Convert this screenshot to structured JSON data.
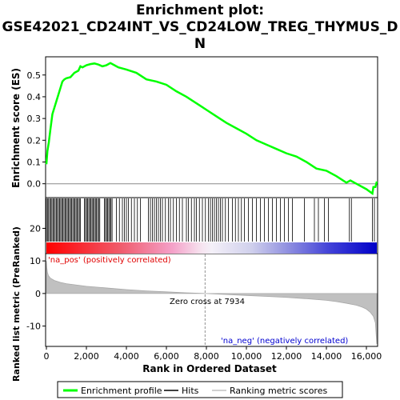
{
  "chart_data": {
    "type": "line",
    "title_line1": "Enrichment plot:",
    "title_line2": "GSE42021_CD24INT_VS_CD24LOW_TREG_THYMUS_D",
    "title_line3": "N",
    "es_panel": {
      "ylabel": "Enrichment score (ES)",
      "ylim": [
        -0.06,
        0.58
      ],
      "yticks": [
        "0.0",
        "0.1",
        "0.2",
        "0.3",
        "0.4",
        "0.5"
      ],
      "ytick_values": [
        0.0,
        0.1,
        0.2,
        0.3,
        0.4,
        0.5
      ],
      "series_name": "Enrichment profile",
      "color": "#00ff00",
      "x": [
        0,
        50,
        120,
        200,
        300,
        400,
        500,
        600,
        700,
        800,
        900,
        1000,
        1200,
        1400,
        1600,
        1700,
        1800,
        2000,
        2200,
        2400,
        2600,
        2800,
        3000,
        3200,
        3400,
        3600,
        3800,
        4000,
        4500,
        5000,
        5500,
        6000,
        6500,
        7000,
        7500,
        8000,
        8500,
        9000,
        9500,
        10000,
        10500,
        11000,
        11500,
        12000,
        12500,
        13000,
        13500,
        14000,
        14500,
        15000,
        15200,
        15500,
        16000,
        16300,
        16350,
        16450,
        16520
      ],
      "values": [
        0.09,
        0.15,
        0.19,
        0.25,
        0.32,
        0.35,
        0.38,
        0.41,
        0.44,
        0.47,
        0.48,
        0.485,
        0.49,
        0.51,
        0.52,
        0.54,
        0.535,
        0.545,
        0.55,
        0.553,
        0.548,
        0.54,
        0.545,
        0.555,
        0.545,
        0.535,
        0.53,
        0.525,
        0.51,
        0.48,
        0.47,
        0.455,
        0.425,
        0.4,
        0.37,
        0.34,
        0.31,
        0.28,
        0.255,
        0.23,
        0.2,
        0.18,
        0.16,
        0.14,
        0.125,
        0.1,
        0.07,
        0.06,
        0.035,
        0.005,
        0.015,
        0.0,
        -0.025,
        -0.045,
        -0.015,
        -0.015,
        0.01
      ]
    },
    "hits": {
      "series_name": "Hits",
      "dense_ranges": [
        [
          0,
          1750
        ],
        [
          1900,
          2700
        ],
        [
          2900,
          3300
        ]
      ],
      "positions": [
        3500,
        3650,
        3800,
        3900,
        4000,
        4100,
        4250,
        4400,
        4550,
        4700,
        5100,
        5200,
        5300,
        5400,
        5500,
        5600,
        5700,
        5800,
        5950,
        6100,
        6200,
        6350,
        6500,
        6650,
        6800,
        7000,
        7100,
        7250,
        7400,
        7500,
        7650,
        7800,
        7950,
        8100,
        8200,
        8300,
        8400,
        8500,
        8600,
        8700,
        8800,
        8950,
        9100,
        9300,
        9450,
        9600,
        9750,
        9900,
        10100,
        10300,
        10500,
        10700,
        10900,
        11100,
        11300,
        11500,
        11700,
        11900,
        12100,
        12300,
        12900,
        13400,
        13600,
        13900,
        14100,
        15150,
        15250,
        16300,
        16400
      ]
    },
    "metric_panel": {
      "ylabel": "Ranked list metric (PreRanked)",
      "ylim": [
        -16,
        12
      ],
      "yticks": [
        "20",
        "10",
        "0",
        "-10"
      ],
      "ytick_values": [
        20,
        10,
        0,
        -10
      ],
      "series_name": "Ranking metric scores",
      "x": [
        0,
        20,
        50,
        100,
        200,
        400,
        700,
        1000,
        1500,
        2000,
        3000,
        4000,
        5000,
        6000,
        7000,
        7934,
        9000,
        10000,
        11000,
        12000,
        13000,
        14000,
        14500,
        15000,
        15500,
        15800,
        16000,
        16200,
        16350,
        16450,
        16520
      ],
      "values": [
        10,
        8,
        6.5,
        5.5,
        4.7,
        4,
        3.4,
        3,
        2.6,
        2.2,
        1.7,
        1.2,
        0.8,
        0.5,
        0.2,
        0,
        -0.3,
        -0.6,
        -0.9,
        -1.2,
        -1.6,
        -2.1,
        -2.5,
        -3,
        -3.6,
        -4.2,
        -4.8,
        -5.8,
        -7,
        -9,
        -15.5
      ],
      "zero_cross_label": "Zero cross at 7934",
      "zero_cross": 7934,
      "pos_label": "'na_pos' (positively correlated)",
      "neg_label": "'na_neg' (negatively correlated)"
    },
    "xlabel": "Rank in Ordered Dataset",
    "xlim": [
      0,
      16520
    ],
    "xticks": [
      "0",
      "2,000",
      "4,000",
      "6,000",
      "8,000",
      "10,000",
      "12,000",
      "14,000",
      "16,000"
    ],
    "xtick_values": [
      0,
      2000,
      4000,
      6000,
      8000,
      10000,
      12000,
      14000,
      16000
    ],
    "legend": {
      "entries": [
        "Enrichment profile",
        "Hits",
        "Ranking metric scores"
      ],
      "colors": [
        "#00ff00",
        "#000000",
        "#c0c0c0"
      ]
    }
  }
}
